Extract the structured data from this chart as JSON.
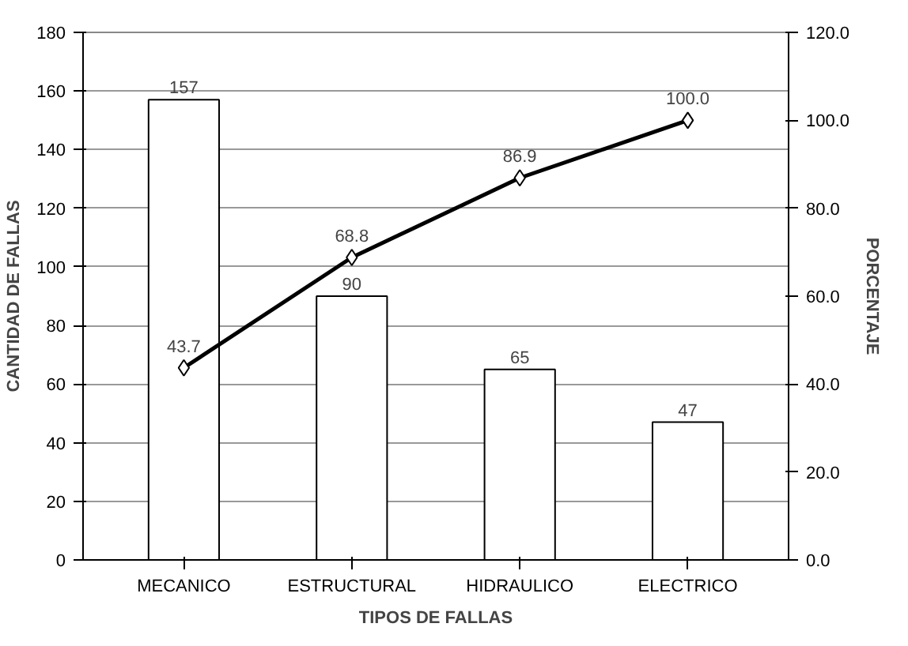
{
  "chart_data": {
    "type": "bar",
    "xlabel": "TIPOS DE FALLAS",
    "ylabel": "CANTIDAD DE FALLAS",
    "y2label": "PORCENTAJE",
    "categories": [
      "MECANICO",
      "ESTRUCTURAL",
      "HIDRAULICO",
      "ELECTRICO"
    ],
    "series": [
      {
        "color": "#ffffff",
        "values": [
          157,
          90,
          65,
          47
        ]
      },
      {
        "type": "line",
        "axis": "y2",
        "color": "#000000",
        "marker": "diamond",
        "values": [
          43.7,
          68.8,
          86.9,
          100.0
        ],
        "value_labels": [
          "43.7",
          "68.8",
          "86.9",
          "100.0"
        ]
      }
    ],
    "ylim": [
      0,
      180
    ],
    "yticks": [
      0,
      20,
      40,
      60,
      80,
      100,
      120,
      140,
      160,
      180
    ],
    "y2lim": [
      0,
      120
    ],
    "y2ticks": [
      {
        "value": 0,
        "label": "0.0"
      },
      {
        "value": 20,
        "label": "20.0"
      },
      {
        "value": 40,
        "label": "40.0"
      },
      {
        "value": 60,
        "label": "60.0"
      },
      {
        "value": 80,
        "label": "80.0"
      },
      {
        "value": 100,
        "label": "100.0"
      },
      {
        "value": 120,
        "label": "120.0"
      }
    ],
    "grid": "y",
    "data_labels": true
  }
}
